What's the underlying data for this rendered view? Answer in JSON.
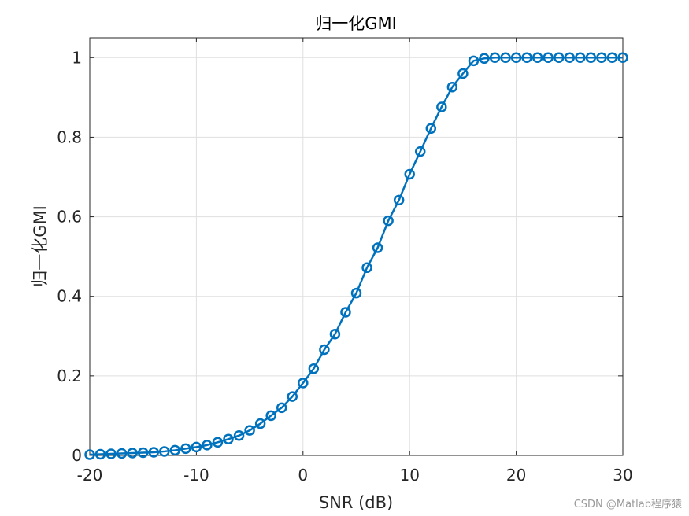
{
  "chart_data": {
    "type": "line",
    "title": "归一化GMI",
    "xlabel": "SNR (dB)",
    "ylabel": "归一化GMI",
    "xlim": [
      -20,
      30
    ],
    "ylim": [
      0,
      1.05
    ],
    "xticks": [
      -20,
      -10,
      0,
      10,
      20,
      30
    ],
    "yticks": [
      0,
      0.2,
      0.4,
      0.6,
      0.8,
      1
    ],
    "xtick_labels": [
      "-20",
      "-10",
      "0",
      "10",
      "20",
      "30"
    ],
    "ytick_labels": [
      "0",
      "0.2",
      "0.4",
      "0.6",
      "0.8",
      "1"
    ],
    "grid": true,
    "marker": "circle",
    "color": "#0072BD",
    "series": [
      {
        "x": [
          -20,
          -19,
          -18,
          -17,
          -16,
          -15,
          -14,
          -13,
          -12,
          -11,
          -10,
          -9,
          -8,
          -7,
          -6,
          -5,
          -4,
          -3,
          -2,
          -1,
          0,
          1,
          2,
          3,
          4,
          5,
          6,
          7,
          8,
          9,
          10,
          11,
          12,
          13,
          14,
          15,
          16,
          17,
          18,
          19,
          20,
          21,
          22,
          23,
          24,
          25,
          26,
          27,
          28,
          29,
          30
        ],
        "y": [
          0.002,
          0.003,
          0.004,
          0.005,
          0.006,
          0.007,
          0.008,
          0.01,
          0.013,
          0.017,
          0.021,
          0.026,
          0.033,
          0.041,
          0.05,
          0.063,
          0.08,
          0.1,
          0.12,
          0.148,
          0.182,
          0.218,
          0.266,
          0.305,
          0.36,
          0.408,
          0.472,
          0.522,
          0.59,
          0.642,
          0.707,
          0.764,
          0.822,
          0.876,
          0.926,
          0.96,
          0.992,
          0.998,
          1,
          1,
          1,
          1,
          1,
          1,
          1,
          1,
          1,
          1,
          1,
          1,
          1
        ]
      }
    ]
  },
  "watermark": "CSDN @Matlab程序猿"
}
